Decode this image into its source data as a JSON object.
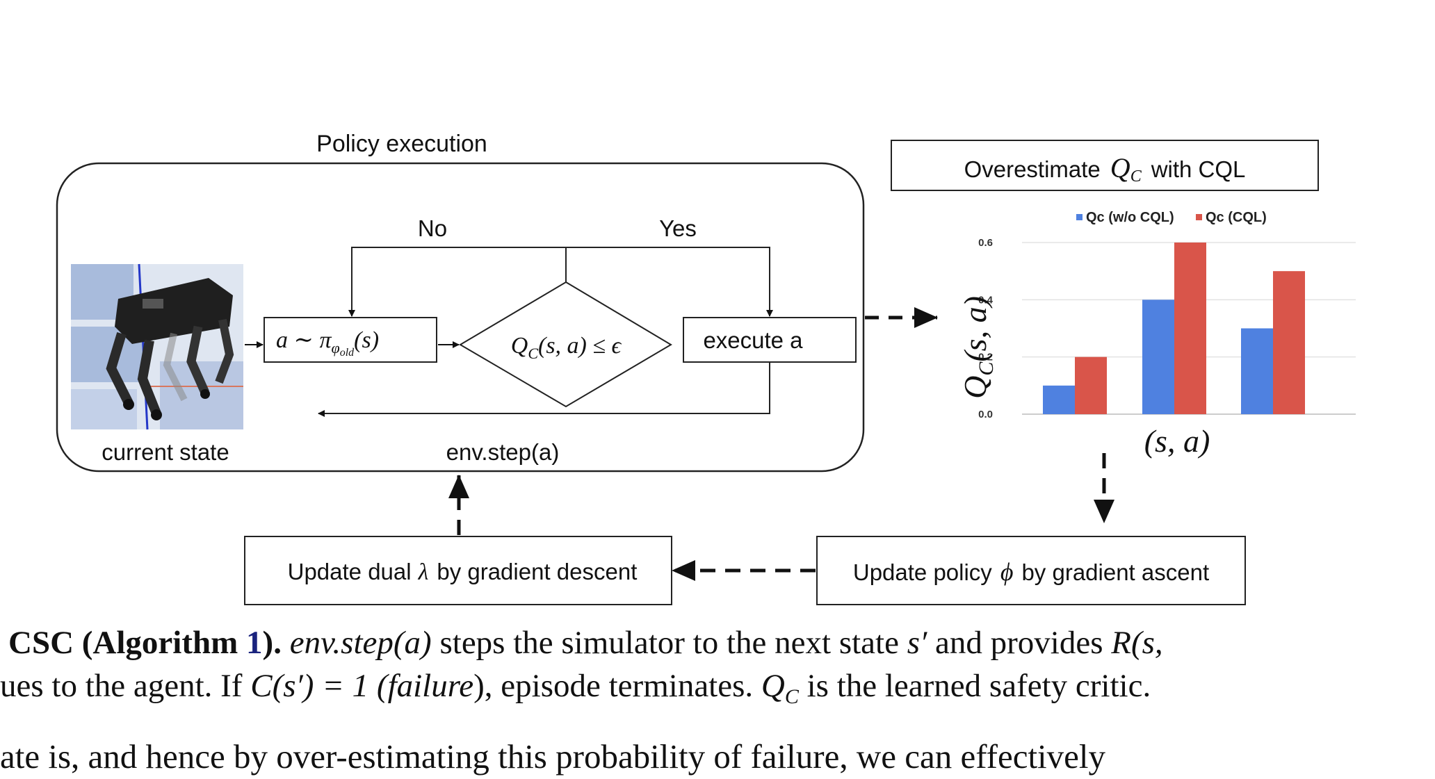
{
  "figure": {
    "policy_execution_label": "Policy execution",
    "no_label": "No",
    "yes_label": "Yes",
    "sample_action": "a ∼ π",
    "sample_action_sub": "φ",
    "sample_action_subsub": "old",
    "sample_action_tail": "(s)",
    "condition": "Q",
    "condition_sub": "C",
    "condition_tail": "(s, a) ≤ ϵ",
    "execute_label": "execute a",
    "current_state_label": "current state",
    "env_step_label": "env.step(a)",
    "overestimate_pre": "Overestimate",
    "overestimate_q": "Q",
    "overestimate_qsub": "C",
    "overestimate_post": "with CQL",
    "update_dual_pre": "Update dual",
    "update_dual_sym": "λ",
    "update_dual_post": "by gradient descent",
    "update_policy_pre": "Update policy",
    "update_policy_sym": "ϕ",
    "update_policy_post": "by gradient ascent",
    "chart_ylabel_main": "Q",
    "chart_ylabel_sub": "C",
    "chart_ylabel_tail": "(s, a)",
    "chart_xlabel": "(s, a)"
  },
  "chart_data": {
    "type": "bar",
    "categories": [
      "",
      "",
      ""
    ],
    "series": [
      {
        "name": "Qc (w/o CQL)",
        "values": [
          0.1,
          0.4,
          0.3
        ],
        "color": "#4f81e0"
      },
      {
        "name": "Qc (CQL)",
        "values": [
          0.2,
          0.6,
          0.5
        ],
        "color": "#d9554a"
      }
    ],
    "yticks": [
      "0.0",
      "0.2",
      "0.4",
      "0.6"
    ],
    "ylim": [
      0,
      0.6
    ],
    "legend_position": "top",
    "grid": true
  },
  "caption": {
    "line1_b1": "CSC (Algorithm ",
    "line1_ref": "1",
    "line1_b2": ").",
    "line1_env": "env.step",
    "line1_arg": "(a)",
    "line1_mid": " steps the simulator to the next state ",
    "line1_sp": "s′",
    "line1_and": " and provides ",
    "line1_R": "R(s,",
    "line2_a": "ues to the agent. If ",
    "line2_C": "C(s′) = 1 (",
    "line2_fail": "failure",
    "line2_b": "), episode terminates. ",
    "line2_Q": "Q",
    "line2_Qsub": "C",
    "line2_c": " is the learned safety critic.",
    "line3": "ate is, and hence by over-estimating this probability of failure, we can effectively"
  }
}
